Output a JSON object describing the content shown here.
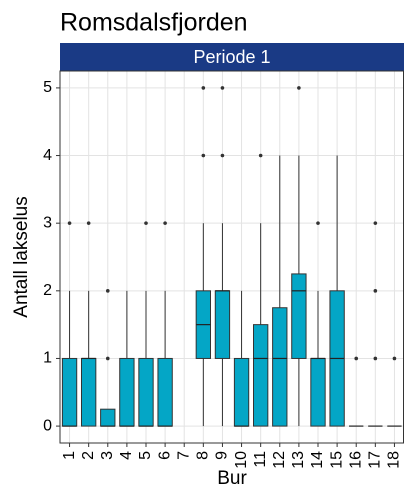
{
  "chart_data": {
    "type": "box",
    "title": "Romsdalsfjorden",
    "facet": "Periode 1",
    "x_label": "Bur",
    "y_label": "Antall lakselus",
    "categories": [
      "1",
      "2",
      "3",
      "4",
      "5",
      "6",
      "7",
      "8",
      "9",
      "10",
      "11",
      "12",
      "13",
      "14",
      "15",
      "16",
      "17",
      "18"
    ],
    "whisker_low": [
      0,
      0,
      0,
      0,
      0,
      0,
      null,
      0,
      0,
      0,
      0,
      0,
      0,
      0,
      0,
      0,
      0,
      0
    ],
    "q1": [
      0,
      0,
      0,
      0,
      0,
      0,
      null,
      1,
      1,
      0,
      0,
      0,
      1,
      0,
      0,
      0,
      0,
      0
    ],
    "median": [
      0,
      1,
      0,
      0,
      0,
      0,
      null,
      1.5,
      2,
      0,
      1,
      1,
      2,
      1,
      1,
      0,
      0,
      0
    ],
    "q3": [
      1,
      1,
      0.25,
      1,
      1,
      1,
      null,
      2,
      2,
      1,
      1.5,
      1.75,
      2.25,
      1,
      2,
      0,
      0,
      0
    ],
    "whisker_high": [
      2,
      2,
      0.25,
      2,
      2,
      2,
      null,
      3,
      3,
      2,
      3,
      4,
      4,
      2,
      4,
      0,
      0,
      0
    ],
    "outliers": [
      [
        3
      ],
      [
        3
      ],
      [
        1,
        2
      ],
      [],
      [
        3
      ],
      [
        3
      ],
      [],
      [
        4,
        5
      ],
      [
        4,
        5
      ],
      [],
      [
        4
      ],
      [],
      [
        5
      ],
      [
        3
      ],
      [],
      [
        1
      ],
      [
        1,
        2,
        3
      ],
      [
        1
      ]
    ],
    "color": "#04a6c6",
    "strip_color": "#1a3a85",
    "ylim": [
      -0.25,
      5.25
    ],
    "yticks": [
      0,
      1,
      2,
      3,
      4,
      5
    ],
    "grid": true
  }
}
